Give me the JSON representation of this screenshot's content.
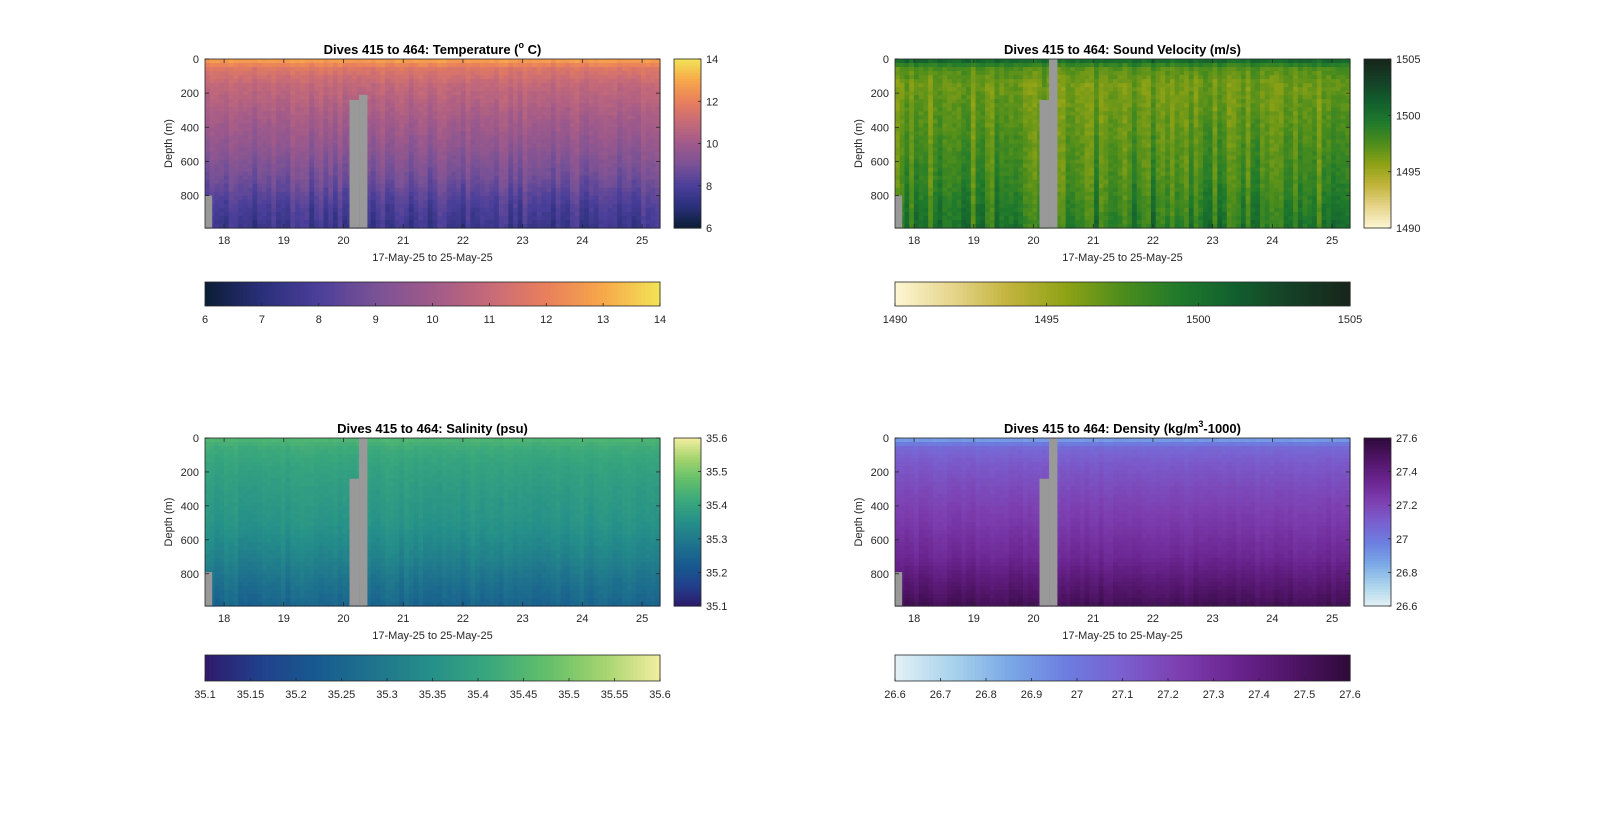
{
  "figure": {
    "date_range_label": "17-May-25 to 25-May-25",
    "depth_label": "Depth (m)",
    "gap_color": "#999999"
  },
  "chart_data": [
    {
      "type": "heatmap",
      "variable": "temperature",
      "title_main": "Dives 415 to 464: Temperature (",
      "title_sup": "o",
      "title_end": " C)",
      "x_ticks": [
        "18",
        "19",
        "20",
        "21",
        "22",
        "23",
        "24",
        "25"
      ],
      "x_tick_values": [
        18,
        19,
        20,
        21,
        22,
        23,
        24,
        25
      ],
      "xlim": [
        17.68,
        25.3
      ],
      "y_ticks": [
        "0",
        "200",
        "400",
        "600",
        "800"
      ],
      "y_tick_values": [
        0,
        200,
        400,
        600,
        800
      ],
      "ylim": [
        0,
        990
      ],
      "cbar_range": [
        6,
        14
      ],
      "cbar_ticks": [
        "6",
        "8",
        "10",
        "12",
        "14"
      ],
      "cbar_tick_values": [
        6,
        8,
        10,
        12,
        14
      ],
      "hbar_ticks": [
        "6",
        "7",
        "8",
        "9",
        "10",
        "11",
        "12",
        "13",
        "14"
      ],
      "hbar_tick_values": [
        6,
        7,
        8,
        9,
        10,
        11,
        12,
        13,
        14
      ],
      "colormap": [
        "#0b1d35",
        "#2a2f7a",
        "#4b3f9a",
        "#7a5296",
        "#a05a8a",
        "#c66a78",
        "#e97f5c",
        "#f7a84a",
        "#f2e457"
      ],
      "profile_depths": [
        0,
        20,
        60,
        150,
        300,
        500,
        700,
        850,
        990
      ],
      "profile_values": [
        13.1,
        12.4,
        11.6,
        10.9,
        10.3,
        9.6,
        8.8,
        8.0,
        7.5
      ],
      "data_gaps": [
        {
          "x_start": 17.68,
          "x_end": 17.8,
          "depth_top": 800
        },
        {
          "x_start": 20.1,
          "x_end": 20.26,
          "depth_top": 240
        },
        {
          "x_start": 20.26,
          "x_end": 20.4,
          "depth_top": 210
        }
      ]
    },
    {
      "type": "heatmap",
      "variable": "sound_velocity",
      "title_main": "Dives 415 to 464: Sound Velocity (m/s)",
      "title_sup": "",
      "title_end": "",
      "x_ticks": [
        "18",
        "19",
        "20",
        "21",
        "22",
        "23",
        "24",
        "25"
      ],
      "x_tick_values": [
        18,
        19,
        20,
        21,
        22,
        23,
        24,
        25
      ],
      "xlim": [
        17.68,
        25.3
      ],
      "y_ticks": [
        "0",
        "200",
        "400",
        "600",
        "800"
      ],
      "y_tick_values": [
        0,
        200,
        400,
        600,
        800
      ],
      "ylim": [
        0,
        990
      ],
      "cbar_range": [
        1490,
        1505
      ],
      "cbar_ticks": [
        "1490",
        "1495",
        "1500",
        "1505"
      ],
      "cbar_tick_values": [
        1490,
        1495,
        1500,
        1505
      ],
      "hbar_ticks": [
        "1490",
        "1495",
        "1500",
        "1505"
      ],
      "hbar_tick_values": [
        1490,
        1495,
        1500,
        1505
      ],
      "colormap": [
        "#fdf6d3",
        "#e6d58c",
        "#c2b43d",
        "#8fa215",
        "#4d8d1c",
        "#1f7a2c",
        "#125e2e",
        "#153f26",
        "#16251a"
      ],
      "profile_depths": [
        0,
        20,
        60,
        150,
        300,
        500,
        700,
        850,
        990
      ],
      "profile_values": [
        1501.6,
        1499.5,
        1497.3,
        1496.4,
        1496.8,
        1497.4,
        1497.9,
        1498.6,
        1499.3
      ],
      "data_gaps": [
        {
          "x_start": 17.68,
          "x_end": 17.8,
          "depth_top": 800
        },
        {
          "x_start": 20.1,
          "x_end": 20.26,
          "depth_top": 240
        },
        {
          "x_start": 20.26,
          "x_end": 20.4,
          "depth_top": 0
        }
      ]
    },
    {
      "type": "heatmap",
      "variable": "salinity",
      "title_main": "Dives 415 to 464: Salinity (psu)",
      "title_sup": "",
      "title_end": "",
      "x_ticks": [
        "18",
        "19",
        "20",
        "21",
        "22",
        "23",
        "24",
        "25"
      ],
      "x_tick_values": [
        18,
        19,
        20,
        21,
        22,
        23,
        24,
        25
      ],
      "xlim": [
        17.68,
        25.3
      ],
      "y_ticks": [
        "0",
        "200",
        "400",
        "600",
        "800"
      ],
      "y_tick_values": [
        0,
        200,
        400,
        600,
        800
      ],
      "ylim": [
        0,
        990
      ],
      "cbar_range": [
        35.1,
        35.6
      ],
      "cbar_ticks": [
        "35.1",
        "35.2",
        "35.3",
        "35.4",
        "35.5",
        "35.6"
      ],
      "cbar_tick_values": [
        35.1,
        35.2,
        35.3,
        35.4,
        35.5,
        35.6
      ],
      "hbar_ticks": [
        "35.1",
        "35.15",
        "35.2",
        "35.25",
        "35.3",
        "35.35",
        "35.4",
        "35.45",
        "35.5",
        "35.55",
        "35.6"
      ],
      "hbar_tick_values": [
        35.1,
        35.15,
        35.2,
        35.25,
        35.3,
        35.35,
        35.4,
        35.45,
        35.5,
        35.55,
        35.6
      ],
      "colormap": [
        "#2e1a6b",
        "#21418d",
        "#175b8f",
        "#1f758d",
        "#259089",
        "#3aa87c",
        "#62bf6a",
        "#a3d46e",
        "#f4eea0"
      ],
      "profile_depths": [
        0,
        20,
        60,
        150,
        300,
        500,
        700,
        850,
        990
      ],
      "profile_values": [
        35.45,
        35.44,
        35.42,
        35.4,
        35.38,
        35.36,
        35.32,
        35.28,
        35.25
      ],
      "data_gaps": [
        {
          "x_start": 17.68,
          "x_end": 17.8,
          "depth_top": 790
        },
        {
          "x_start": 20.1,
          "x_end": 20.26,
          "depth_top": 240
        },
        {
          "x_start": 20.26,
          "x_end": 20.4,
          "depth_top": 0
        }
      ]
    },
    {
      "type": "heatmap",
      "variable": "density",
      "title_main": "Dives 415 to 464: Density (kg/m",
      "title_sup": "3",
      "title_end": "-1000)",
      "x_ticks": [
        "18",
        "19",
        "20",
        "21",
        "22",
        "23",
        "24",
        "25"
      ],
      "x_tick_values": [
        18,
        19,
        20,
        21,
        22,
        23,
        24,
        25
      ],
      "xlim": [
        17.68,
        25.3
      ],
      "y_ticks": [
        "0",
        "200",
        "400",
        "600",
        "800"
      ],
      "y_tick_values": [
        0,
        200,
        400,
        600,
        800
      ],
      "ylim": [
        0,
        990
      ],
      "cbar_range": [
        26.6,
        27.6
      ],
      "cbar_ticks": [
        "26.6",
        "26.8",
        "27",
        "27.2",
        "27.4",
        "27.6"
      ],
      "cbar_tick_values": [
        26.6,
        26.8,
        27.0,
        27.2,
        27.4,
        27.6
      ],
      "hbar_ticks": [
        "26.6",
        "26.7",
        "26.8",
        "26.9",
        "27",
        "27.1",
        "27.2",
        "27.3",
        "27.4",
        "27.5",
        "27.6"
      ],
      "hbar_tick_values": [
        26.6,
        26.7,
        26.8,
        26.9,
        27.0,
        27.1,
        27.2,
        27.3,
        27.4,
        27.5,
        27.6
      ],
      "colormap": [
        "#e3f1f5",
        "#a9d3ec",
        "#7aa9e6",
        "#6c7ee0",
        "#7a5fcf",
        "#7d3fb0",
        "#6a248f",
        "#4f1466",
        "#2e0a3a"
      ],
      "profile_depths": [
        0,
        20,
        60,
        150,
        300,
        500,
        700,
        850,
        990
      ],
      "profile_values": [
        26.82,
        26.95,
        27.06,
        27.12,
        27.18,
        27.25,
        27.33,
        27.43,
        27.52
      ],
      "data_gaps": [
        {
          "x_start": 17.68,
          "x_end": 17.8,
          "depth_top": 790
        },
        {
          "x_start": 20.1,
          "x_end": 20.26,
          "depth_top": 240
        },
        {
          "x_start": 20.26,
          "x_end": 20.4,
          "depth_top": 0
        }
      ]
    }
  ]
}
